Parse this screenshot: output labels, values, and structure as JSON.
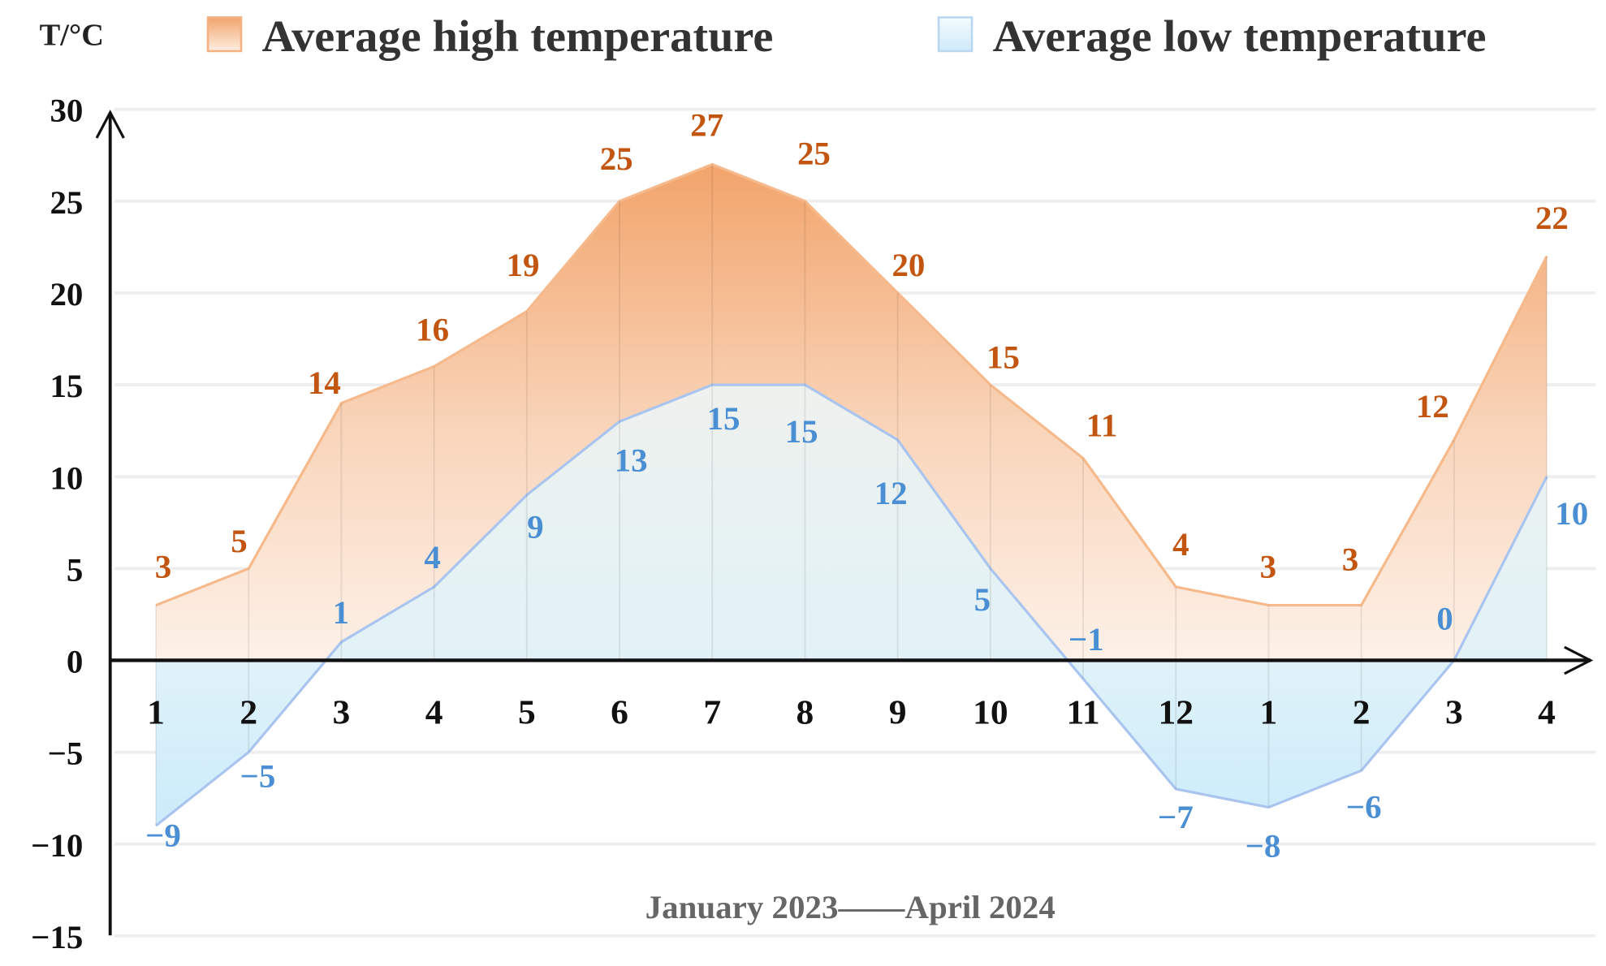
{
  "chart_data": {
    "type": "area",
    "title": "",
    "ylabel": "T/°C",
    "xlabel": "January 2023——April 2024",
    "ylim": [
      -15,
      30
    ],
    "yticks": [
      "30",
      "25",
      "20",
      "15",
      "10",
      "5",
      "0",
      "−5",
      "−10",
      "−15"
    ],
    "ytick_values": [
      30,
      25,
      20,
      15,
      10,
      5,
      0,
      -5,
      -10,
      -15
    ],
    "categories": [
      "1",
      "2",
      "3",
      "4",
      "5",
      "6",
      "7",
      "8",
      "9",
      "10",
      "11",
      "12",
      "1",
      "2",
      "3",
      "4"
    ],
    "grid": true,
    "legend_position": "top",
    "series": [
      {
        "name": "Average high temperature",
        "color": "#c2550f",
        "fill_top": "#f2a46b",
        "fill_bottom": "#fdf1e8",
        "values": [
          3,
          5,
          14,
          16,
          19,
          25,
          27,
          25,
          20,
          15,
          11,
          4,
          3,
          3,
          12,
          22
        ]
      },
      {
        "name": "Average low temperature",
        "color": "#4a8fd3",
        "fill_top": "#e2f1f6",
        "fill_bottom": "#d3effc",
        "values": [
          -9,
          -5,
          1,
          4,
          9,
          13,
          15,
          15,
          12,
          5,
          -1,
          -7,
          -8,
          -6,
          0,
          10
        ]
      }
    ],
    "value_labels_high": [
      "3",
      "5",
      "14",
      "16",
      "19",
      "25",
      "27",
      "25",
      "20",
      "15",
      "11",
      "4",
      "3",
      "3",
      "12",
      "22"
    ],
    "value_labels_low": [
      "−9",
      "−5",
      "1",
      "4",
      "9",
      "13",
      "15",
      "15",
      "12",
      "5",
      "−1",
      "−7",
      "−8",
      "−6",
      "0",
      "10"
    ]
  }
}
